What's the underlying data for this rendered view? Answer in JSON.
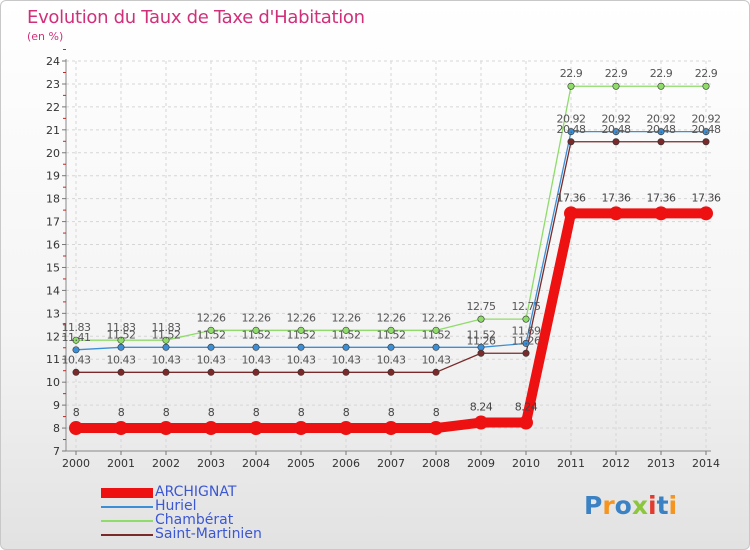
{
  "title": "Evolution du Taux de Taxe d'Habitation",
  "unit": "(en %)",
  "logo": {
    "letters": [
      "P",
      "r",
      "o",
      "x",
      "i",
      "t",
      "i"
    ],
    "colors": [
      "#3b82c4",
      "#f7941d",
      "#3b82c4",
      "#8cc63f",
      "#e23b2e",
      "#3b82c4",
      "#f7941d"
    ]
  },
  "chart_data": {
    "type": "line",
    "title": "Evolution du Taux de Taxe d'Habitation",
    "ylabel": "(en %)",
    "xlabel": "",
    "ylim": [
      7,
      24
    ],
    "x": [
      "2000",
      "2001",
      "2002",
      "2003",
      "2004",
      "2005",
      "2006",
      "2007",
      "2008",
      "2009",
      "2010",
      "2011",
      "2012",
      "2013",
      "2014"
    ],
    "series": [
      {
        "name": "ARCHIGNAT",
        "color": "#ee1111",
        "width": 10,
        "labelColor": "#444444",
        "values": [
          8,
          8,
          8,
          8,
          8,
          8,
          8,
          8,
          8,
          8.24,
          8.24,
          17.36,
          17.36,
          17.36,
          17.36
        ],
        "labels": [
          "8",
          "8",
          "8",
          "8",
          "8",
          "8",
          "8",
          "8",
          "8",
          "8.24",
          "8.24",
          "17.36",
          "17.36",
          "17.36",
          "17.36"
        ]
      },
      {
        "name": "Huriel",
        "color": "#3a8fd6",
        "width": 1.3,
        "labelColor": "#555555",
        "values": [
          11.41,
          11.52,
          11.52,
          11.52,
          11.52,
          11.52,
          11.52,
          11.52,
          11.52,
          11.52,
          11.69,
          20.92,
          20.92,
          20.92,
          20.92
        ],
        "labels": [
          "11.41",
          "11.52",
          "11.52",
          "11.52",
          "11.52",
          "11.52",
          "11.52",
          "11.52",
          "11.52",
          "11.52",
          "11.69",
          "20.92",
          "20.92",
          "20.92",
          "20.92"
        ]
      },
      {
        "name": "Chambérat",
        "color": "#8fdc6a",
        "width": 1.3,
        "labelColor": "#555555",
        "values": [
          11.83,
          11.83,
          11.83,
          12.26,
          12.26,
          12.26,
          12.26,
          12.26,
          12.26,
          12.75,
          12.75,
          22.9,
          22.9,
          22.9,
          22.9
        ],
        "labels": [
          "11.83",
          "11.83",
          "11.83",
          "12.26",
          "12.26",
          "12.26",
          "12.26",
          "12.26",
          "12.26",
          "12.75",
          "12.75",
          "22.9",
          "22.9",
          "22.9",
          "22.9"
        ]
      },
      {
        "name": "Saint-Martinien",
        "color": "#7a2a2a",
        "width": 1.3,
        "labelColor": "#555555",
        "values": [
          10.43,
          10.43,
          10.43,
          10.43,
          10.43,
          10.43,
          10.43,
          10.43,
          10.43,
          11.26,
          11.26,
          20.48,
          20.48,
          20.48,
          20.48
        ],
        "labels": [
          "10.43",
          "10.43",
          "10.43",
          "10.43",
          "10.43",
          "10.43",
          "10.43",
          "10.43",
          "10.43",
          "11.26",
          "11.26",
          "20.48",
          "20.48",
          "20.48",
          "20.48"
        ]
      }
    ],
    "legend": [
      "ARCHIGNAT",
      "Huriel",
      "Chambérat",
      "Saint-Martinien"
    ]
  }
}
